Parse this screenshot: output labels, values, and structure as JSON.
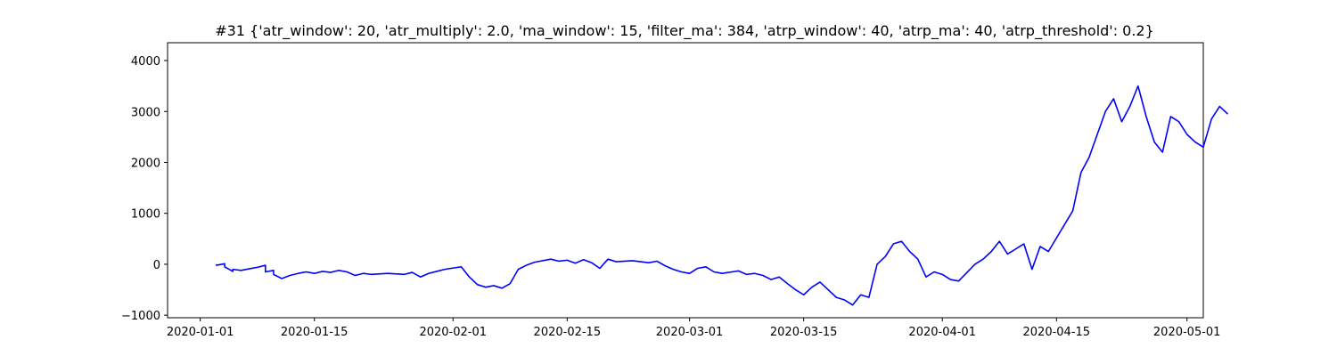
{
  "chart_data": {
    "type": "line",
    "title": "#31 {'atr_window': 20, 'atr_multiply': 2.0, 'ma_window': 15, 'filter_ma': 384, 'atrp_window': 40, 'atrp_ma': 40, 'atrp_threshold': 0.2}",
    "xlabel": "",
    "ylabel": "",
    "x_axis_type": "date",
    "xlim": [
      "2019-12-28",
      "2020-05-03"
    ],
    "ylim": [
      -1050,
      4350
    ],
    "x_ticks": [
      "2020-01-01",
      "2020-01-15",
      "2020-02-01",
      "2020-02-15",
      "2020-03-01",
      "2020-03-15",
      "2020-04-01",
      "2020-04-15",
      "2020-05-01"
    ],
    "y_ticks": [
      -1000,
      0,
      1000,
      2000,
      3000,
      4000
    ],
    "grid": false,
    "legend": "none",
    "line_color": "#0000ff",
    "series": [
      {
        "points": [
          [
            "2020-01-03",
            0
          ],
          [
            "2020-01-03",
            -20
          ],
          [
            "2020-01-04",
            10
          ],
          [
            "2020-01-04",
            -50
          ],
          [
            "2020-01-05",
            -140
          ],
          [
            "2020-01-05",
            -100
          ],
          [
            "2020-01-06",
            -120
          ],
          [
            "2020-01-07",
            -90
          ],
          [
            "2020-01-08",
            -60
          ],
          [
            "2020-01-09",
            -20
          ],
          [
            "2020-01-09",
            -150
          ],
          [
            "2020-01-10",
            -120
          ],
          [
            "2020-01-10",
            -200
          ],
          [
            "2020-01-11",
            -280
          ],
          [
            "2020-01-12",
            -220
          ],
          [
            "2020-01-13",
            -180
          ],
          [
            "2020-01-14",
            -150
          ],
          [
            "2020-01-15",
            -180
          ],
          [
            "2020-01-16",
            -140
          ],
          [
            "2020-01-17",
            -160
          ],
          [
            "2020-01-18",
            -120
          ],
          [
            "2020-01-19",
            -150
          ],
          [
            "2020-01-20",
            -220
          ],
          [
            "2020-01-21",
            -180
          ],
          [
            "2020-01-22",
            -200
          ],
          [
            "2020-01-24",
            -180
          ],
          [
            "2020-01-26",
            -200
          ],
          [
            "2020-01-27",
            -160
          ],
          [
            "2020-01-28",
            -250
          ],
          [
            "2020-01-29",
            -180
          ],
          [
            "2020-01-30",
            -140
          ],
          [
            "2020-01-31",
            -100
          ],
          [
            "2020-02-02",
            -50
          ],
          [
            "2020-02-03",
            -250
          ],
          [
            "2020-02-04",
            -400
          ],
          [
            "2020-02-05",
            -450
          ],
          [
            "2020-02-06",
            -420
          ],
          [
            "2020-02-07",
            -470
          ],
          [
            "2020-02-08",
            -380
          ],
          [
            "2020-02-09",
            -100
          ],
          [
            "2020-02-10",
            -20
          ],
          [
            "2020-02-11",
            40
          ],
          [
            "2020-02-13",
            100
          ],
          [
            "2020-02-14",
            60
          ],
          [
            "2020-02-15",
            80
          ],
          [
            "2020-02-16",
            20
          ],
          [
            "2020-02-17",
            90
          ],
          [
            "2020-02-18",
            30
          ],
          [
            "2020-02-19",
            -80
          ],
          [
            "2020-02-20",
            100
          ],
          [
            "2020-02-21",
            50
          ],
          [
            "2020-02-23",
            70
          ],
          [
            "2020-02-25",
            30
          ],
          [
            "2020-02-26",
            60
          ],
          [
            "2020-02-27",
            -30
          ],
          [
            "2020-02-28",
            -100
          ],
          [
            "2020-02-29",
            -150
          ],
          [
            "2020-03-01",
            -180
          ],
          [
            "2020-03-02",
            -80
          ],
          [
            "2020-03-03",
            -50
          ],
          [
            "2020-03-04",
            -150
          ],
          [
            "2020-03-05",
            -180
          ],
          [
            "2020-03-07",
            -130
          ],
          [
            "2020-03-08",
            -200
          ],
          [
            "2020-03-09",
            -180
          ],
          [
            "2020-03-10",
            -220
          ],
          [
            "2020-03-11",
            -300
          ],
          [
            "2020-03-12",
            -250
          ],
          [
            "2020-03-13",
            -380
          ],
          [
            "2020-03-14",
            -500
          ],
          [
            "2020-03-15",
            -600
          ],
          [
            "2020-03-16",
            -450
          ],
          [
            "2020-03-17",
            -350
          ],
          [
            "2020-03-18",
            -500
          ],
          [
            "2020-03-19",
            -650
          ],
          [
            "2020-03-20",
            -700
          ],
          [
            "2020-03-21",
            -800
          ],
          [
            "2020-03-22",
            -600
          ],
          [
            "2020-03-23",
            -650
          ],
          [
            "2020-03-24",
            0
          ],
          [
            "2020-03-25",
            150
          ],
          [
            "2020-03-26",
            400
          ],
          [
            "2020-03-27",
            450
          ],
          [
            "2020-03-28",
            250
          ],
          [
            "2020-03-29",
            100
          ],
          [
            "2020-03-30",
            -250
          ],
          [
            "2020-03-31",
            -150
          ],
          [
            "2020-04-01",
            -200
          ],
          [
            "2020-04-02",
            -300
          ],
          [
            "2020-04-03",
            -330
          ],
          [
            "2020-04-05",
            0
          ],
          [
            "2020-04-06",
            100
          ],
          [
            "2020-04-07",
            250
          ],
          [
            "2020-04-08",
            450
          ],
          [
            "2020-04-09",
            200
          ],
          [
            "2020-04-10",
            300
          ],
          [
            "2020-04-11",
            400
          ],
          [
            "2020-04-12",
            -100
          ],
          [
            "2020-04-13",
            350
          ],
          [
            "2020-04-14",
            250
          ],
          [
            "2020-04-17",
            1050
          ],
          [
            "2020-04-18",
            1800
          ],
          [
            "2020-04-19",
            2100
          ],
          [
            "2020-04-20",
            2550
          ],
          [
            "2020-04-21",
            3000
          ],
          [
            "2020-04-22",
            3250
          ],
          [
            "2020-04-23",
            2800
          ],
          [
            "2020-04-24",
            3100
          ],
          [
            "2020-04-25",
            3500
          ],
          [
            "2020-04-26",
            2900
          ],
          [
            "2020-04-27",
            2400
          ],
          [
            "2020-04-28",
            2200
          ],
          [
            "2020-04-29",
            2900
          ],
          [
            "2020-04-30",
            2800
          ],
          [
            "2020-05-01",
            2550
          ],
          [
            "2020-05-02",
            2400
          ],
          [
            "2020-05-03",
            2300
          ],
          [
            "2020-05-04",
            2850
          ],
          [
            "2020-05-05",
            3100
          ],
          [
            "2020-05-06",
            2950
          ]
        ]
      }
    ]
  }
}
